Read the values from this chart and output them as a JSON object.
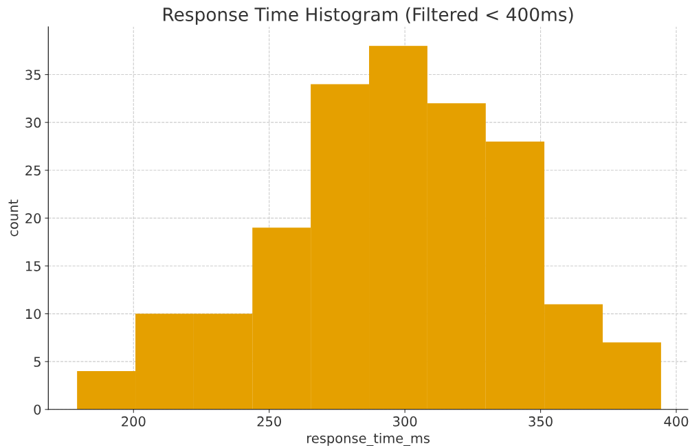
{
  "chart_data": {
    "type": "histogram",
    "title": "Response Time Histogram (Filtered < 400ms)",
    "xlabel": "response_time_ms",
    "ylabel": "count",
    "bins": [
      179.2,
      200.7,
      222.2,
      243.8,
      265.3,
      286.8,
      308.3,
      329.8,
      351.4,
      372.9,
      394.4
    ],
    "values": [
      4,
      10,
      10,
      19,
      34,
      38,
      32,
      28,
      11,
      7
    ],
    "color": "#e5a000",
    "xlim": [
      168.6,
      404.3
    ],
    "xticks": [
      200,
      250,
      300,
      350,
      400
    ],
    "ylim": [
      0,
      40
    ],
    "yticks": [
      0,
      5,
      10,
      15,
      20,
      25,
      30,
      35
    ],
    "grid": true
  }
}
